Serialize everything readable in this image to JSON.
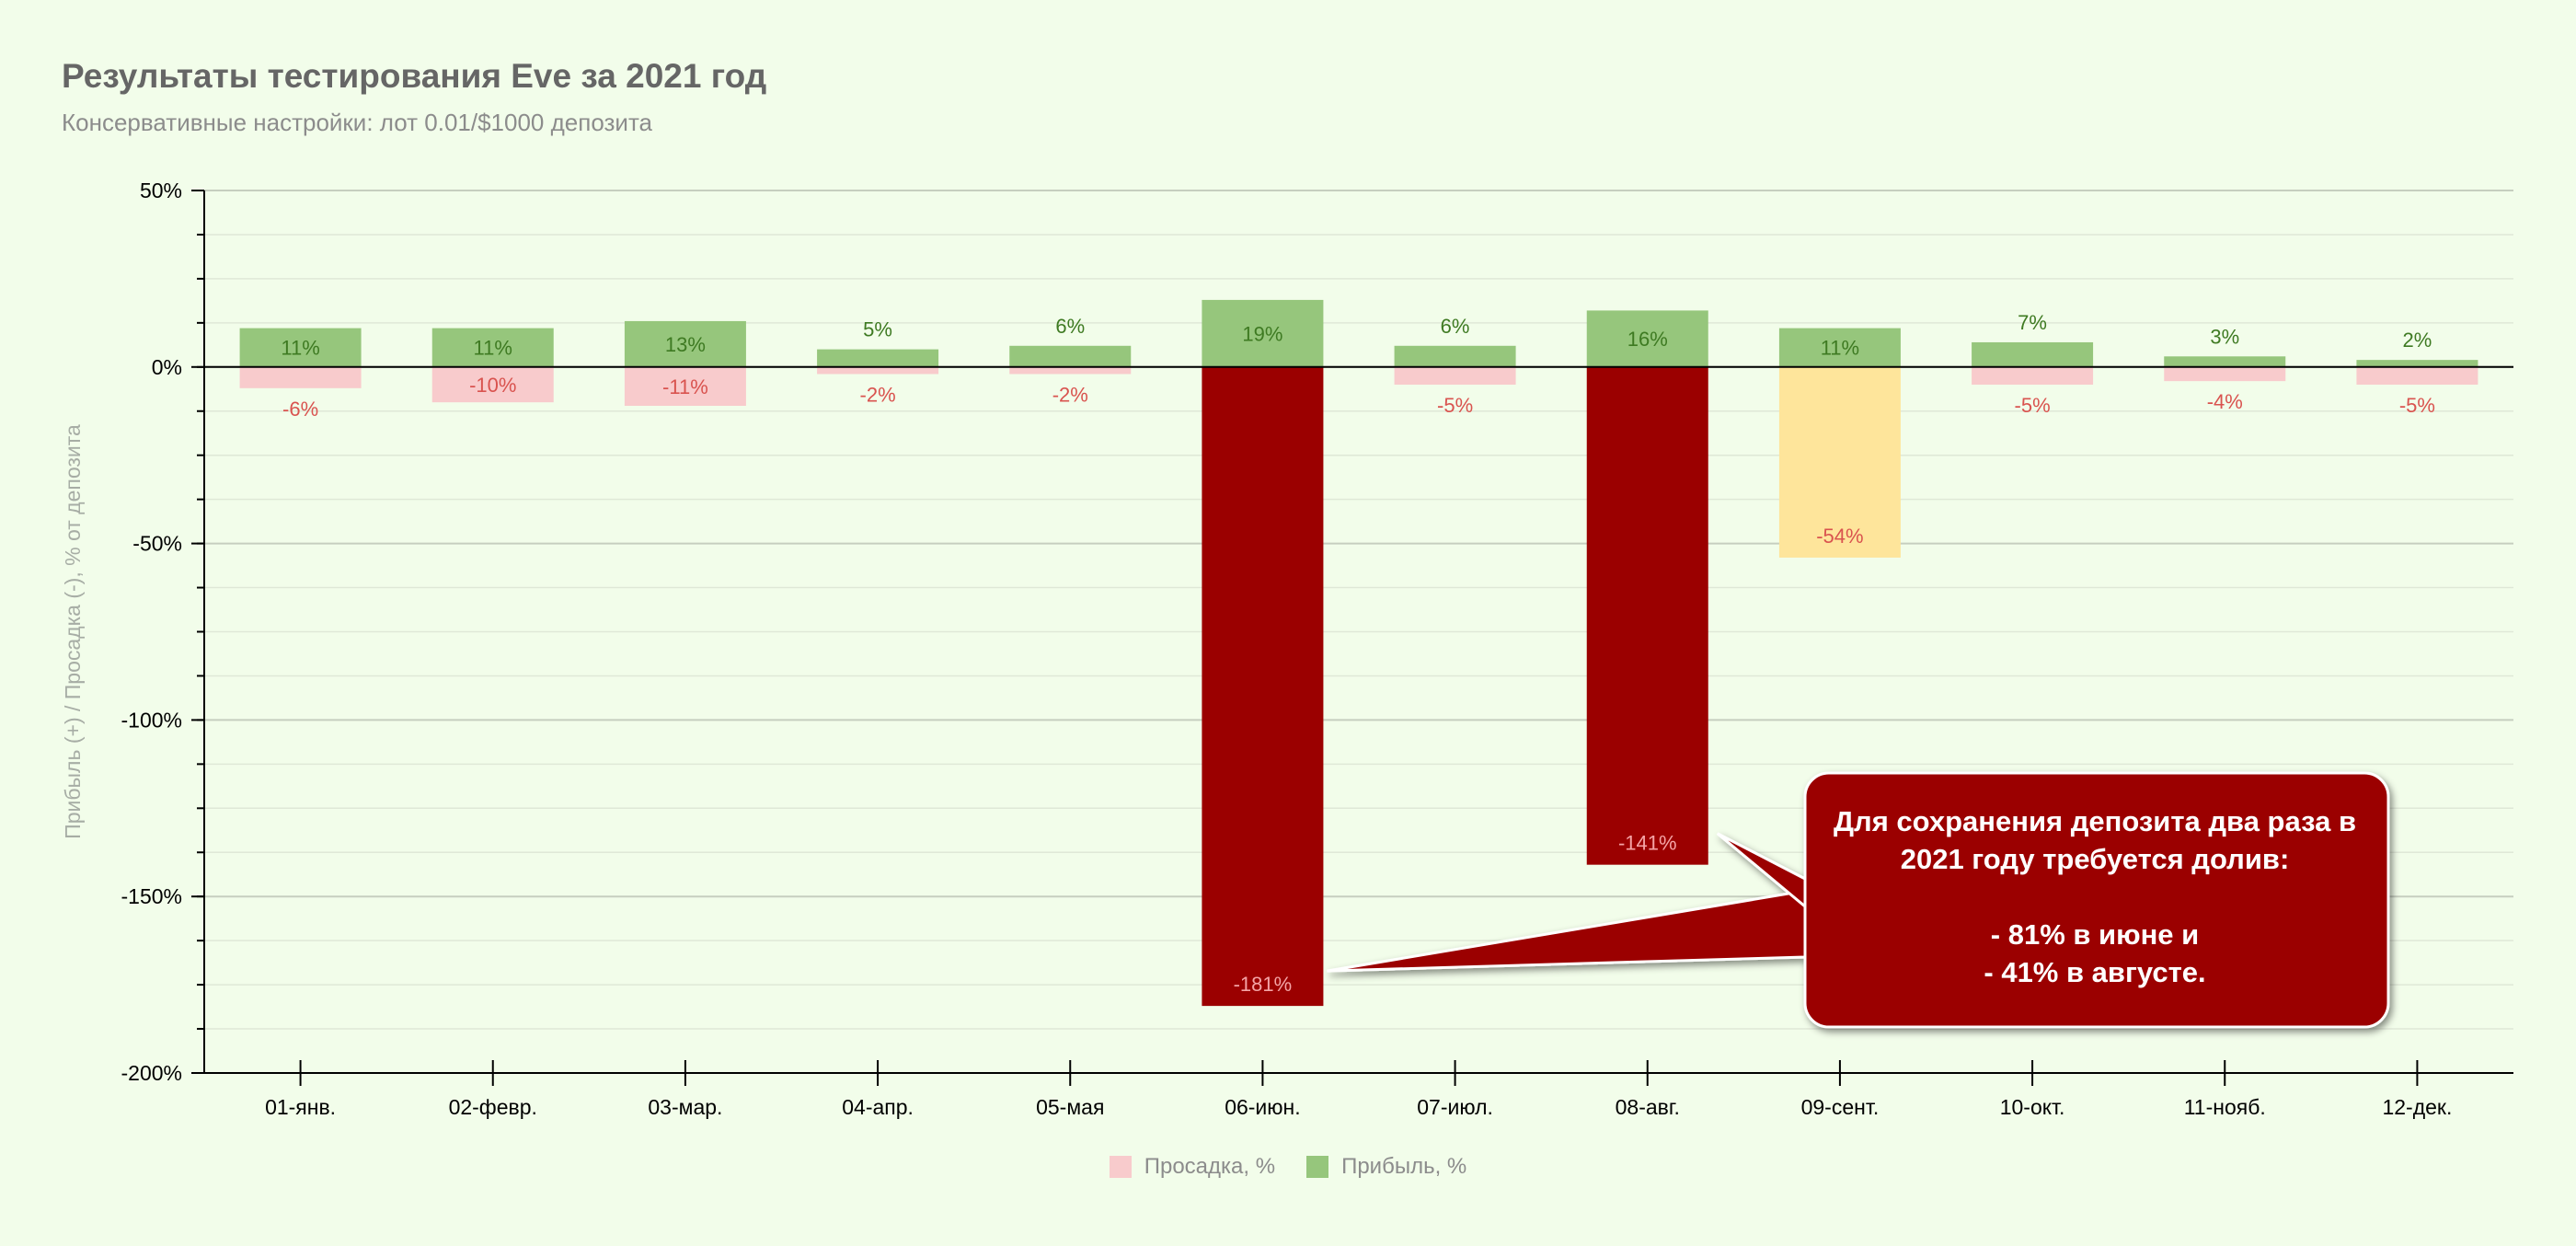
{
  "title": "Результаты тестирования Eve за 2021 год",
  "subtitle": "Консервативные настройки: лот 0.01/$1000 депозита",
  "colors": {
    "profit": "#96c67c",
    "drawdown": "#f8cbcc",
    "critical": "#9b0000",
    "warning": "#fee59b",
    "profit_label": "#3e7a22",
    "drawdown_label": "#d9534f",
    "background": "#f2fdea"
  },
  "chart_data": {
    "type": "bar",
    "ylabel": "Прибыль (+) / Просадка (-), % от депозита",
    "xlabel": "",
    "ylim": [
      -200,
      50
    ],
    "y_ticks": [
      50,
      0,
      -50,
      -100,
      -150,
      -200
    ],
    "y_tick_labels": [
      "50%",
      "0%",
      "-50%",
      "-100%",
      "-150%",
      "-200%"
    ],
    "categories": [
      "01-янв.",
      "02-февр.",
      "03-мар.",
      "04-апр.",
      "05-мая",
      "06-июн.",
      "07-июл.",
      "08-авг.",
      "09-сент.",
      "10-окт.",
      "11-нояб.",
      "12-дек."
    ],
    "grid": true,
    "legend_position": "bottom",
    "series": [
      {
        "name": "Просадка, %",
        "values": [
          -6,
          -10,
          -11,
          -2,
          -2,
          -181,
          -5,
          -141,
          -54,
          -5,
          -4,
          -5
        ],
        "labels": [
          "-6%",
          "-10%",
          "-11%",
          "-2%",
          "-2%",
          "-181%",
          "-5%",
          "-141%",
          "-54%",
          "-5%",
          "-4%",
          "-5%"
        ],
        "point_colors": [
          "drawdown",
          "drawdown",
          "drawdown",
          "drawdown",
          "drawdown",
          "critical",
          "drawdown",
          "critical",
          "warning",
          "drawdown",
          "drawdown",
          "drawdown"
        ]
      },
      {
        "name": "Прибыль, %",
        "values": [
          11,
          11,
          13,
          5,
          6,
          19,
          6,
          16,
          11,
          7,
          3,
          2
        ],
        "labels": [
          "11%",
          "11%",
          "13%",
          "5%",
          "6%",
          "19%",
          "6%",
          "16%",
          "11%",
          "7%",
          "3%",
          "2%"
        ]
      }
    ],
    "annotation": {
      "lines": [
        "Для сохранения депозита два раза в",
        "2021 году требуется долив:",
        "",
        "- 81% в июне и",
        "- 41% в августе."
      ],
      "points_to": [
        "06-июн.",
        "08-авг."
      ]
    }
  }
}
